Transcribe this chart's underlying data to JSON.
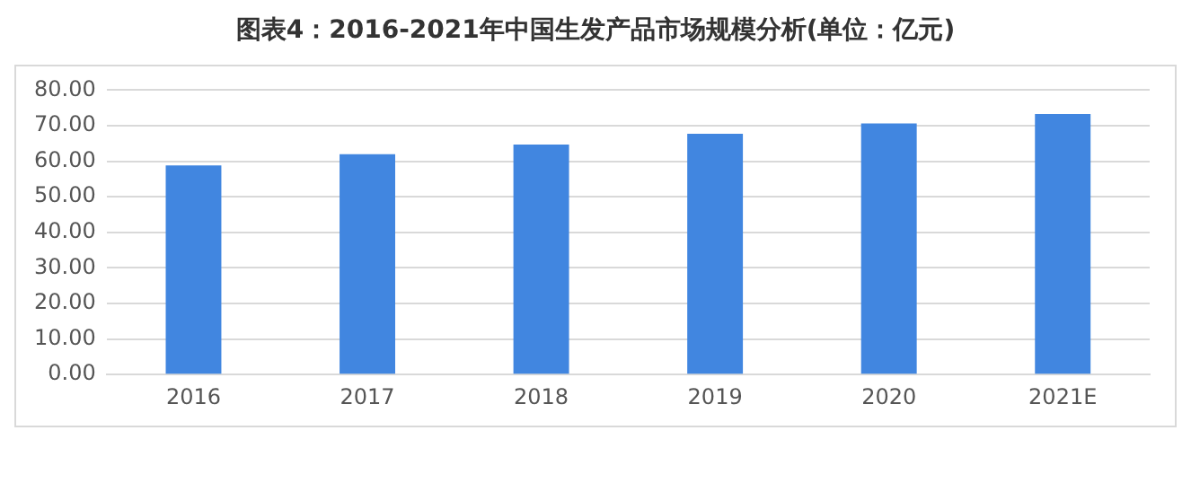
{
  "chart_data": {
    "type": "bar",
    "title": "图表4：2016-2021年中国生发产品市场规模分析(单位：亿元)",
    "categories": [
      "2016",
      "2017",
      "2018",
      "2019",
      "2020",
      "2021E"
    ],
    "values": [
      58.8,
      62.0,
      64.7,
      67.7,
      70.6,
      73.3
    ],
    "color": "#4186e0",
    "ylim": [
      0,
      80
    ],
    "yticks": [
      {
        "value": 0,
        "label": "0.00"
      },
      {
        "value": 10,
        "label": "10.00"
      },
      {
        "value": 20,
        "label": "20.00"
      },
      {
        "value": 30,
        "label": "30.00"
      },
      {
        "value": 40,
        "label": "40.00"
      },
      {
        "value": 50,
        "label": "50.00"
      },
      {
        "value": 60,
        "label": "60.00"
      },
      {
        "value": 70,
        "label": "70.00"
      },
      {
        "value": 80,
        "label": "80.00"
      }
    ],
    "grid": "y"
  }
}
